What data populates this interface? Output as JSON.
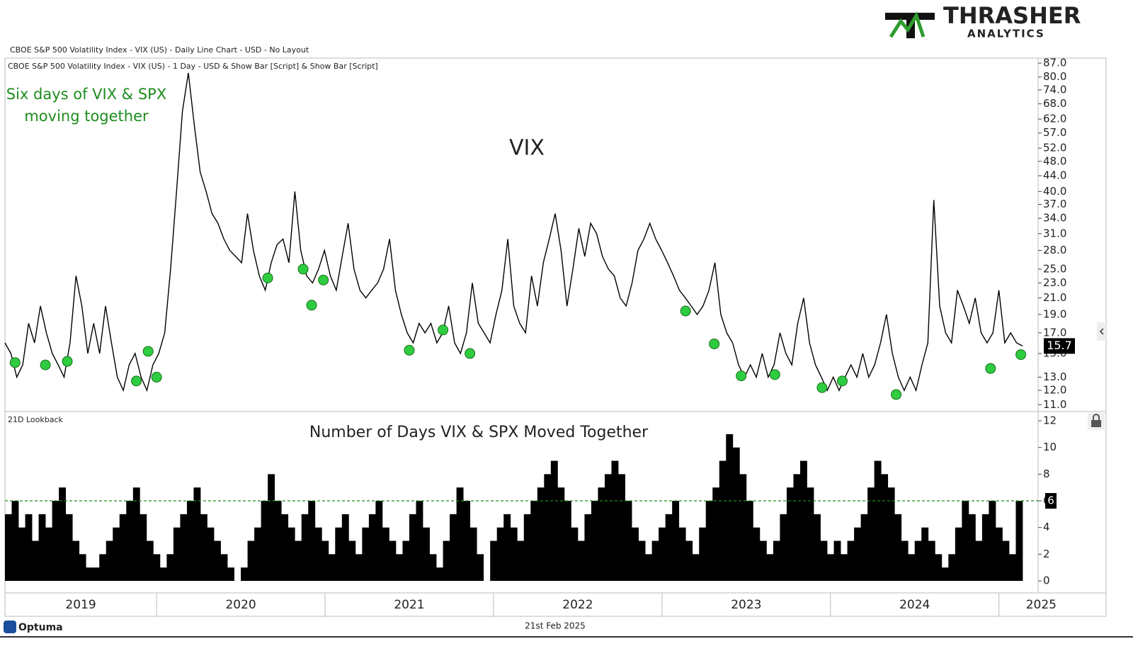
{
  "header": "CBOE S&P 500 Volatility Index - VIX (US) - Daily Line Chart - USD - No Layout",
  "logo": {
    "name": "THRASHER",
    "tagline": "ANALYTICS"
  },
  "footer": {
    "brand": "Optuma",
    "date": "21st Feb 2025"
  },
  "chart_data": [
    {
      "type": "line",
      "title": "VIX",
      "subtitle": "CBOE S&P 500 Volatility Index - VIX (US) - 1 Day - USD & Show Bar [Script] & Show Bar [Script]",
      "annotation": [
        "Six days of VIX & SPX",
        "moving together"
      ],
      "annotation_color": "#1e8c1e",
      "log_scale": true,
      "color": "#000000",
      "xlim": [
        2019.1,
        2025.14
      ],
      "xticks": [
        2019,
        2020,
        2021,
        2022,
        2023,
        2024,
        2025
      ],
      "ylim": [
        10.6,
        89.7
      ],
      "yticks": [
        {
          "value": 87,
          "label": "87.0"
        },
        {
          "value": 80,
          "label": "80.0"
        },
        {
          "value": 74,
          "label": "74.0"
        },
        {
          "value": 68,
          "label": "68.0"
        },
        {
          "value": 62,
          "label": "62.0"
        },
        {
          "value": 57,
          "label": "57.0"
        },
        {
          "value": 52,
          "label": "52.0"
        },
        {
          "value": 48,
          "label": "48.0"
        },
        {
          "value": 44,
          "label": "44.0"
        },
        {
          "value": 40,
          "label": "40.0"
        },
        {
          "value": 37,
          "label": "37.0"
        },
        {
          "value": 34,
          "label": "34.0"
        },
        {
          "value": 31,
          "label": "31.0"
        },
        {
          "value": 28,
          "label": "28.0"
        },
        {
          "value": 25,
          "label": "25.0"
        },
        {
          "value": 23,
          "label": "23.0"
        },
        {
          "value": 21,
          "label": "21.0"
        },
        {
          "value": 19,
          "label": "19.0"
        },
        {
          "value": 17,
          "label": "17.0"
        },
        {
          "value": 15,
          "label": "15.0"
        },
        {
          "value": 13,
          "label": "13.0"
        },
        {
          "value": 12,
          "label": "12.0"
        },
        {
          "value": 11,
          "label": "11.0"
        }
      ],
      "values": [
        16,
        15,
        13,
        14,
        18,
        16,
        20,
        17,
        15,
        14,
        13,
        16,
        24,
        20,
        15,
        18,
        15,
        20,
        16,
        13,
        12,
        14,
        15,
        13,
        12,
        14,
        15,
        17,
        25,
        40,
        65,
        82,
        60,
        45,
        40,
        35,
        33,
        30,
        28,
        27,
        26,
        35,
        28,
        24,
        22,
        26,
        29,
        30,
        26,
        40,
        28,
        24,
        23,
        25,
        28,
        24,
        22,
        27,
        33,
        25,
        22,
        21,
        22,
        23,
        25,
        30,
        22,
        19,
        17,
        16,
        18,
        17,
        18,
        16,
        17,
        20,
        16,
        15,
        17,
        23,
        18,
        17,
        16,
        19,
        22,
        30,
        20,
        18,
        17,
        24,
        20,
        26,
        30,
        35,
        28,
        20,
        25,
        32,
        27,
        33,
        31,
        27,
        25,
        24,
        21,
        20,
        23,
        28,
        30,
        33,
        30,
        28,
        26,
        24,
        22,
        21,
        20,
        19,
        20,
        22,
        26,
        19,
        17,
        16,
        14,
        13,
        14,
        13,
        15,
        13,
        14,
        17,
        15,
        14,
        18,
        21,
        16,
        14,
        13,
        12,
        13,
        12,
        13,
        14,
        13,
        15,
        13,
        14,
        16,
        19,
        15,
        13,
        12,
        13,
        12,
        14,
        16,
        38,
        20,
        17,
        16,
        22,
        20,
        18,
        21,
        17,
        16,
        17,
        22,
        16,
        17,
        16,
        15.7
      ],
      "markers": {
        "color": "#2ecc40",
        "x": [
          2019.16,
          2019.34,
          2019.47,
          2019.88,
          2019.95,
          2020.0,
          2020.66,
          2020.87,
          2020.92,
          2020.99,
          2021.5,
          2021.7,
          2021.86,
          2023.14,
          2023.31,
          2023.47,
          2023.67,
          2023.95,
          2024.07,
          2024.39,
          2024.95,
          2025.13
        ],
        "values": [
          14.2,
          14.0,
          14.3,
          12.7,
          15.2,
          13.0,
          23.7,
          25.0,
          20.1,
          23.4,
          15.3,
          17.3,
          15.0,
          19.4,
          15.9,
          13.1,
          13.2,
          12.2,
          12.7,
          11.7,
          13.7,
          14.9
        ]
      }
    },
    {
      "type": "bar",
      "title": "Number of Days VIX & SPX Moved Together",
      "subtitle": "21D Lookback",
      "color": "#000000",
      "ylim": [
        -0.85,
        12.64
      ],
      "yticks": [
        12,
        10,
        8,
        6,
        4,
        2,
        0
      ],
      "threshold": 6,
      "threshold_color": "#1e8c1e",
      "values": [
        5,
        6,
        4,
        5,
        3,
        5,
        4,
        6,
        7,
        5,
        3,
        2,
        1,
        1,
        2,
        3,
        4,
        5,
        6,
        7,
        5,
        3,
        2,
        1,
        2,
        4,
        5,
        6,
        7,
        5,
        4,
        3,
        2,
        1,
        0,
        1,
        3,
        4,
        6,
        8,
        6,
        5,
        4,
        3,
        5,
        6,
        4,
        3,
        2,
        4,
        5,
        3,
        2,
        4,
        5,
        6,
        4,
        3,
        2,
        3,
        5,
        6,
        4,
        2,
        1,
        3,
        5,
        7,
        6,
        4,
        2,
        0,
        3,
        4,
        5,
        4,
        3,
        5,
        6,
        7,
        8,
        9,
        7,
        6,
        4,
        3,
        5,
        6,
        7,
        8,
        9,
        8,
        6,
        4,
        3,
        2,
        3,
        4,
        5,
        6,
        4,
        3,
        2,
        4,
        6,
        7,
        9,
        11,
        10,
        8,
        6,
        4,
        3,
        2,
        3,
        5,
        7,
        8,
        9,
        7,
        5,
        3,
        2,
        3,
        2,
        3,
        4,
        5,
        7,
        9,
        8,
        7,
        5,
        3,
        2,
        3,
        4,
        3,
        2,
        1,
        2,
        4,
        6,
        5,
        3,
        5,
        6,
        4,
        3,
        2,
        6
      ]
    }
  ]
}
